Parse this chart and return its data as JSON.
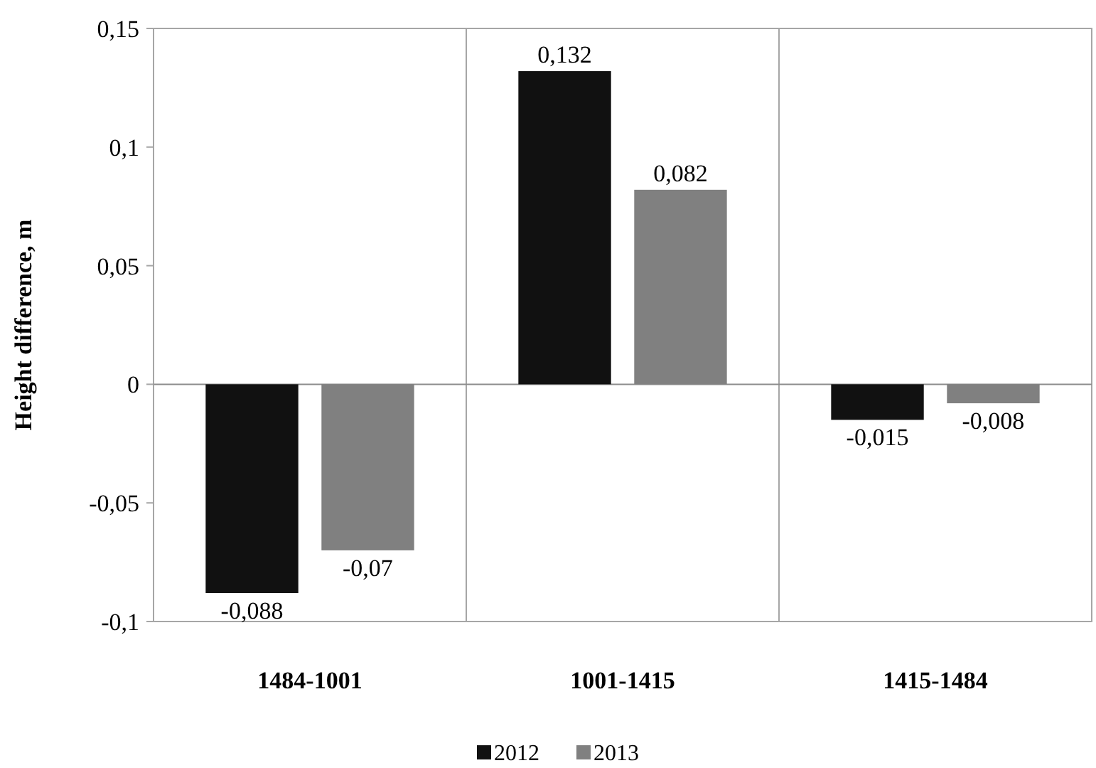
{
  "chart_data": {
    "type": "bar",
    "ylabel": "Height difference, m",
    "categories": [
      "1484-1001",
      "1001-1415",
      "1415-1484"
    ],
    "series": [
      {
        "name": "2012",
        "color": "#111111",
        "values": [
          -0.088,
          0.132,
          -0.015
        ],
        "value_labels": [
          "-0,088",
          "0,132",
          "-0,015"
        ]
      },
      {
        "name": "2013",
        "color": "#808080",
        "values": [
          -0.07,
          0.082,
          -0.008
        ],
        "value_labels": [
          "-0,07",
          "0,082",
          "-0,008"
        ]
      }
    ],
    "ylim": [
      -0.1,
      0.15
    ],
    "yticks": [
      {
        "value": -0.1,
        "label": "-0,1"
      },
      {
        "value": -0.05,
        "label": "-0,05"
      },
      0,
      {
        "value": 0.05,
        "label": "0,05"
      },
      {
        "value": 0.1,
        "label": "0,1"
      },
      {
        "value": 0.15,
        "label": "0,15"
      }
    ],
    "grid": "x",
    "legend": "bottom"
  }
}
